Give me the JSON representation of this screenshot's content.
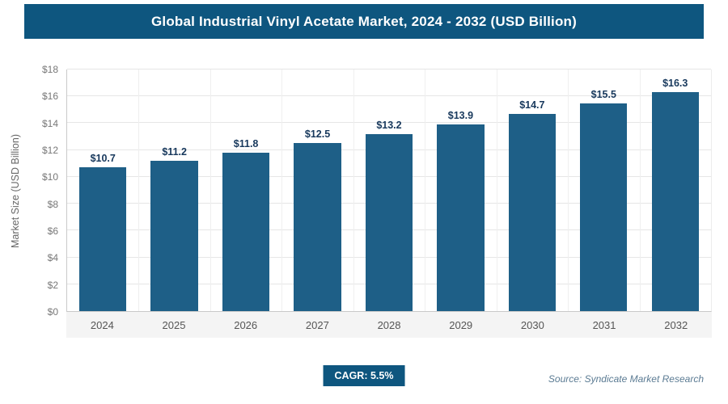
{
  "header": {
    "title": "Global Industrial Vinyl Acetate Market, 2024 - 2032 (USD Billion)"
  },
  "colors": {
    "header_bg": "#0e567f",
    "bar": "#1e5f87",
    "badge_bg": "#0e567f"
  },
  "chart_data": {
    "type": "bar",
    "title": "Global Industrial Vinyl Acetate Market, 2024 - 2032 (USD Billion)",
    "categories": [
      "2024",
      "2025",
      "2026",
      "2027",
      "2028",
      "2029",
      "2030",
      "2031",
      "2032"
    ],
    "values": [
      10.7,
      11.2,
      11.8,
      12.5,
      13.2,
      13.9,
      14.7,
      15.5,
      16.3
    ],
    "value_labels": [
      "$10.7",
      "$11.2",
      "$11.8",
      "$12.5",
      "$13.2",
      "$13.9",
      "$14.7",
      "$15.5",
      "$16.3"
    ],
    "xlabel": "",
    "ylabel": "Market Size (USD Billion)",
    "ylim": [
      0,
      18
    ],
    "ytick_step": 2,
    "ytick_labels": [
      "$0",
      "$2",
      "$4",
      "$6",
      "$8",
      "$10",
      "$12",
      "$14",
      "$16",
      "$18"
    ],
    "grid": true,
    "legend": false
  },
  "footer": {
    "cagr_label": "CAGR: 5.5%",
    "source": "Source: Syndicate Market Research"
  }
}
